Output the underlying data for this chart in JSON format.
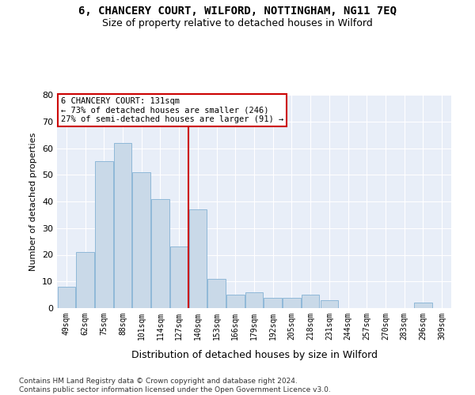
{
  "title_line1": "6, CHANCERY COURT, WILFORD, NOTTINGHAM, NG11 7EQ",
  "title_line2": "Size of property relative to detached houses in Wilford",
  "xlabel": "Distribution of detached houses by size in Wilford",
  "ylabel": "Number of detached properties",
  "categories": [
    "49sqm",
    "62sqm",
    "75sqm",
    "88sqm",
    "101sqm",
    "114sqm",
    "127sqm",
    "140sqm",
    "153sqm",
    "166sqm",
    "179sqm",
    "192sqm",
    "205sqm",
    "218sqm",
    "231sqm",
    "244sqm",
    "257sqm",
    "270sqm",
    "283sqm",
    "296sqm",
    "309sqm"
  ],
  "values": [
    8,
    21,
    55,
    62,
    51,
    41,
    23,
    37,
    11,
    5,
    6,
    4,
    4,
    5,
    3,
    0,
    0,
    0,
    0,
    2,
    0
  ],
  "bar_color": "#c9d9e8",
  "bar_edge_color": "#8fb8d8",
  "vline_x": 6.5,
  "ylim": [
    0,
    80
  ],
  "yticks": [
    0,
    10,
    20,
    30,
    40,
    50,
    60,
    70,
    80
  ],
  "annotation_box_text": "6 CHANCERY COURT: 131sqm\n← 73% of detached houses are smaller (246)\n27% of semi-detached houses are larger (91) →",
  "footer_text": "Contains HM Land Registry data © Crown copyright and database right 2024.\nContains public sector information licensed under the Open Government Licence v3.0.",
  "background_color": "#ffffff",
  "plot_bg_color": "#e8eef8",
  "grid_color": "#ffffff",
  "vline_color": "#cc0000",
  "title1_fontsize": 10,
  "title2_fontsize": 9,
  "ylabel_fontsize": 8,
  "xlabel_fontsize": 9,
  "tick_fontsize": 7,
  "ytick_fontsize": 8,
  "footer_fontsize": 6.5,
  "annot_fontsize": 7.5
}
